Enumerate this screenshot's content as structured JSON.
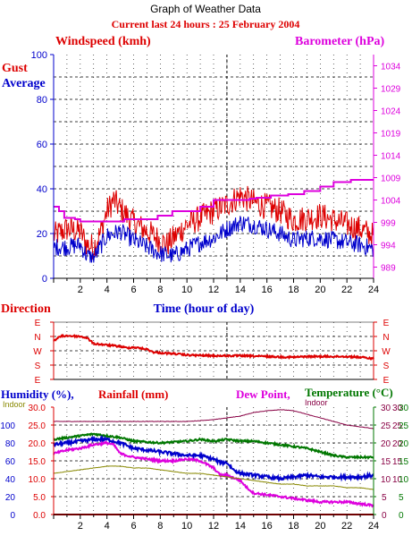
{
  "header": {
    "title": "Graph of Weather Data",
    "subtitle": "Current last 24 hours : 25 February 2004"
  },
  "colors": {
    "red": "#dd0000",
    "blue": "#0000cc",
    "magenta": "#dd00dd",
    "green": "#007700",
    "olive": "#888800",
    "purple": "#880044",
    "black": "#000000"
  },
  "chart_data": [
    {
      "type": "line",
      "labels": {
        "windspeed": "Windspeed (kmh)",
        "barometer": "Barometer (hPa)",
        "gust": "Gust",
        "average": "Average",
        "xlabel": "Time (hour of day)"
      },
      "x_ticks": [
        "2",
        "4",
        "6",
        "8",
        "10",
        "12",
        "14",
        "16",
        "18",
        "20",
        "22",
        "24"
      ],
      "xlim": [
        0,
        24
      ],
      "y_left_ticks": [
        "0",
        "20",
        "40",
        "60",
        "80",
        "100"
      ],
      "ylim_left": [
        0,
        100
      ],
      "y_right_ticks": [
        "989",
        "994",
        "999",
        "1004",
        "1009",
        "1014",
        "1019",
        "1024",
        "1029",
        "1034"
      ],
      "ylim_right": [
        986.5,
        1036.5
      ],
      "grid": true,
      "series": [
        {
          "name": "Gust",
          "axis": "left",
          "x": [
            0,
            1,
            2,
            2.5,
            3,
            3.5,
            4,
            4.5,
            5,
            6,
            7,
            8,
            8.5,
            9,
            10,
            11,
            12,
            13,
            14,
            15,
            16,
            17,
            18,
            19,
            20,
            21,
            22,
            23,
            24
          ],
          "y": [
            19,
            22,
            21,
            15,
            14,
            20,
            30,
            35,
            31,
            25,
            21,
            17,
            15,
            18,
            24,
            27,
            30,
            33,
            37,
            34,
            32,
            30,
            26,
            27,
            28,
            26,
            24,
            22,
            19
          ]
        },
        {
          "name": "Average",
          "axis": "left",
          "x": [
            0,
            1,
            2,
            2.5,
            3,
            4,
            5,
            6,
            7,
            8,
            9,
            10,
            11,
            12,
            13,
            14,
            15,
            16,
            17,
            18,
            19,
            20,
            21,
            22,
            23,
            24
          ],
          "y": [
            14,
            14,
            15,
            10,
            9,
            19,
            21,
            17,
            14,
            11,
            10,
            13,
            16,
            18,
            22,
            25,
            24,
            22,
            20,
            17,
            18,
            18,
            17,
            16,
            15,
            13
          ]
        },
        {
          "name": "Barometer",
          "axis": "right",
          "x": [
            0,
            0.4,
            0.8,
            1.6,
            2.0,
            5.3,
            7.8,
            8.9,
            10.1,
            11.0,
            12.0,
            14.7,
            15.2,
            16.3,
            17.6,
            18.8,
            20.0,
            21.0,
            22.3,
            24
          ],
          "y": [
            1002.5,
            1001.5,
            1000,
            999.7,
            999.2,
            999.7,
            1000.5,
            1001.5,
            1001.5,
            1002.5,
            1004,
            1004.3,
            1004.5,
            1005.0,
            1005.3,
            1006.0,
            1007.0,
            1008.0,
            1008.5,
            1008.5
          ]
        }
      ]
    },
    {
      "type": "line",
      "labels": {
        "title": "Direction"
      },
      "y_ticks": [
        "E",
        "N",
        "W",
        "S",
        "E"
      ],
      "xlim": [
        0,
        24
      ],
      "grid": true,
      "series": [
        {
          "name": "Direction",
          "x": [
            0,
            0.5,
            1,
            2,
            2.5,
            3,
            4,
            5,
            5.5,
            6,
            7,
            7.5,
            8,
            9,
            10,
            12,
            14,
            16,
            18,
            19,
            20,
            22,
            23,
            24
          ],
          "y": [
            1.3,
            1.0,
            0.95,
            1.0,
            1.1,
            1.5,
            1.6,
            1.7,
            1.8,
            1.75,
            1.9,
            2.1,
            2.15,
            2.2,
            2.3,
            2.35,
            2.35,
            2.4,
            2.45,
            2.4,
            2.4,
            2.4,
            2.45,
            2.55
          ]
        }
      ]
    },
    {
      "type": "line",
      "labels": {
        "humidity": "Humidity (%),",
        "rainfall": "Rainfall (mm)",
        "dewpoint": "Dew Point,",
        "temperature": "Temperature (°C)",
        "indoor_left": "Indoor",
        "indoor_right": "Indoor"
      },
      "xlim": [
        0,
        24
      ],
      "x_ticks": [
        "2",
        "4",
        "6",
        "8",
        "10",
        "12",
        "14",
        "16",
        "18",
        "20",
        "22",
        "24"
      ],
      "y_left_humidity_ticks": [
        "0",
        "20",
        "40",
        "60",
        "80",
        "100"
      ],
      "y_left_rain_ticks": [
        "0.0",
        "5.0",
        "10.0",
        "15.0",
        "20.0",
        "25.0",
        "30.0"
      ],
      "y_right_temp_ticks": [
        "0",
        "5",
        "10",
        "15",
        "20",
        "25",
        "30"
      ],
      "y_right_indoor_ticks": [
        "0",
        "5",
        "10",
        "15",
        "20",
        "25",
        "30"
      ],
      "y_right_indoor_prefix_ticks": [
        "",
        "",
        "10",
        "15",
        "20",
        "25",
        "30"
      ],
      "ylim": [
        0,
        30
      ],
      "grid": true,
      "series": [
        {
          "name": "Indoor Temperature",
          "x": [
            0,
            2,
            4,
            6,
            8,
            10,
            12,
            13,
            14,
            15,
            16,
            17,
            18,
            19,
            20,
            21,
            22,
            23,
            24
          ],
          "y": [
            26,
            26,
            26,
            26,
            26,
            26,
            26.5,
            27,
            27.5,
            28.5,
            29,
            29.3,
            29,
            28,
            27,
            26,
            25,
            24.5,
            24
          ]
        },
        {
          "name": "Temperature",
          "x": [
            0,
            1,
            2,
            3,
            4,
            5,
            6,
            8,
            10,
            11,
            12,
            13,
            14,
            15,
            16,
            17,
            18,
            19,
            20,
            21,
            22,
            23,
            24
          ],
          "y": [
            21,
            21.5,
            22,
            22.5,
            22,
            21.5,
            20.5,
            20,
            20.5,
            21,
            20.5,
            21,
            20.5,
            20.5,
            20,
            19.5,
            19,
            18.5,
            17.5,
            16.5,
            16,
            16,
            16
          ]
        },
        {
          "name": "Humidity",
          "x": [
            0,
            1,
            2,
            3,
            4,
            5,
            6,
            7,
            8,
            9,
            10,
            11,
            12,
            12.5,
            13,
            13.5,
            14,
            15,
            16,
            17,
            18,
            19,
            20,
            21,
            22,
            23,
            24
          ],
          "y": [
            19.5,
            20,
            20.5,
            21,
            21,
            20,
            18.5,
            18,
            17.5,
            17,
            16.5,
            16.5,
            15.5,
            14.5,
            14.5,
            12.5,
            11.5,
            11,
            10.5,
            10,
            10.5,
            11,
            10.5,
            10.5,
            10.5,
            10.5,
            11
          ]
        },
        {
          "name": "Dew Point",
          "x": [
            0,
            1,
            2,
            3,
            4,
            4.5,
            5,
            6,
            7,
            8,
            9,
            10,
            11,
            12,
            12.5,
            13,
            14,
            14.5,
            15,
            16,
            17,
            18,
            19,
            20,
            21,
            22,
            23,
            24
          ],
          "y": [
            17,
            18,
            18.5,
            19.5,
            20,
            19.5,
            17,
            16,
            15.5,
            15,
            15,
            15.5,
            15,
            13,
            11,
            11,
            9.5,
            7.5,
            6,
            5.5,
            5,
            4.5,
            4,
            3.5,
            3.5,
            3.5,
            3,
            2.5
          ]
        },
        {
          "name": "Indoor Dew Point",
          "x": [
            0,
            1,
            2,
            3,
            4,
            5,
            6,
            7,
            8,
            9,
            10,
            11,
            12,
            13,
            14,
            15,
            16,
            17,
            18,
            19,
            20,
            21,
            22,
            23,
            24
          ],
          "y": [
            11.5,
            12,
            12.5,
            13,
            13.5,
            13.5,
            13,
            13,
            12.5,
            12,
            11.5,
            11.5,
            11,
            10.5,
            10,
            9.5,
            9,
            8.5,
            8.5,
            8,
            8,
            8,
            7.5,
            7.5,
            7
          ]
        },
        {
          "name": "Rainfall",
          "x": [
            0,
            24
          ],
          "y": [
            0,
            0
          ]
        }
      ]
    }
  ]
}
